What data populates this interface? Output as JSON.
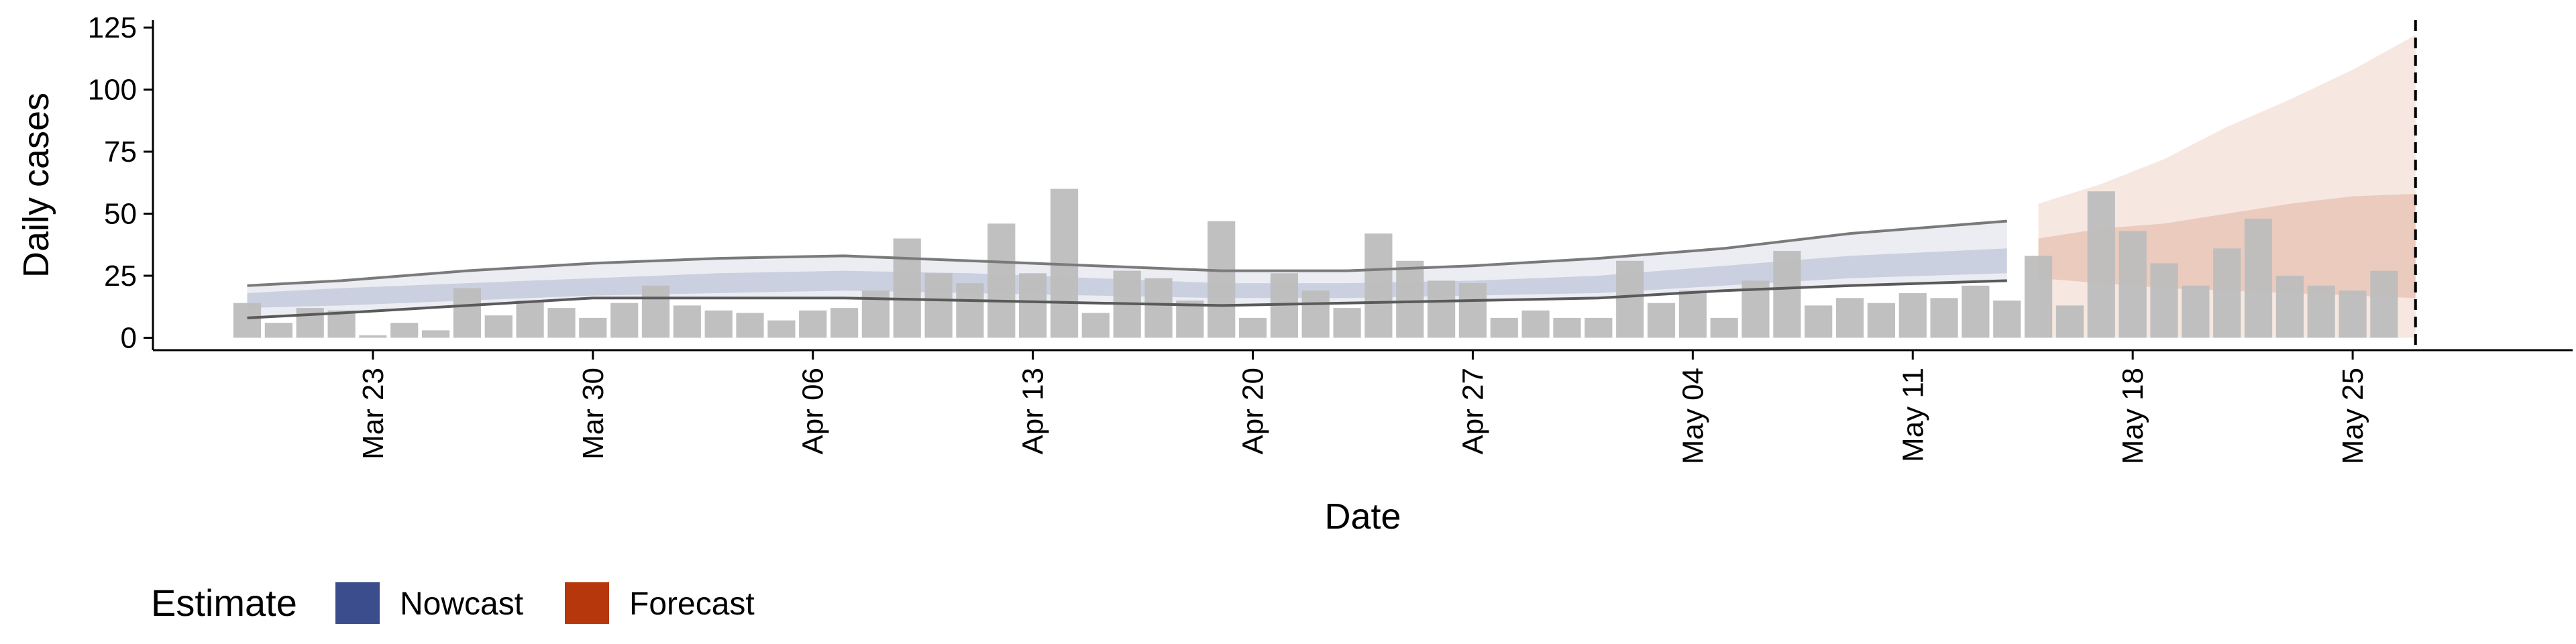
{
  "chart_data": {
    "type": "bar",
    "xlabel": "Date",
    "ylabel": "Daily cases",
    "ylim": [
      -5,
      128
    ],
    "yticks": [
      0,
      25,
      50,
      75,
      100,
      125
    ],
    "xlim": [
      "2020-03-16",
      "2020-06-01"
    ],
    "xticks": [
      {
        "date": "2020-03-23",
        "label": "Mar 23"
      },
      {
        "date": "2020-03-30",
        "label": "Mar 30"
      },
      {
        "date": "2020-04-06",
        "label": "Apr 06"
      },
      {
        "date": "2020-04-13",
        "label": "Apr 13"
      },
      {
        "date": "2020-04-20",
        "label": "Apr 20"
      },
      {
        "date": "2020-04-27",
        "label": "Apr 27"
      },
      {
        "date": "2020-05-04",
        "label": "May 04"
      },
      {
        "date": "2020-05-11",
        "label": "May 11"
      },
      {
        "date": "2020-05-18",
        "label": "May 18"
      },
      {
        "date": "2020-05-25",
        "label": "May 25"
      }
    ],
    "grid": false,
    "reference_line": {
      "date": "2020-05-27",
      "style": "dashed"
    },
    "bars": {
      "start": "2020-03-19",
      "color": "#bdbdbd",
      "values": [
        14,
        6,
        12,
        11,
        1,
        6,
        3,
        20,
        9,
        15,
        12,
        8,
        14,
        21,
        13,
        11,
        10,
        7,
        11,
        12,
        19,
        40,
        26,
        22,
        46,
        26,
        60,
        10,
        27,
        24,
        15,
        47,
        8,
        26,
        19,
        12,
        42,
        31,
        23,
        22,
        8,
        11,
        8,
        8,
        31,
        14,
        19,
        8,
        23,
        35,
        13,
        16,
        14,
        18,
        16,
        21,
        15,
        33,
        13,
        59,
        43,
        30,
        21,
        36,
        48,
        25,
        21,
        19,
        27
      ]
    },
    "nowcast": {
      "name": "Nowcast",
      "color": "#3b4d8c",
      "x": [
        "2020-03-19",
        "2020-03-22",
        "2020-03-26",
        "2020-03-30",
        "2020-04-03",
        "2020-04-07",
        "2020-04-11",
        "2020-04-15",
        "2020-04-19",
        "2020-04-23",
        "2020-04-27",
        "2020-05-01",
        "2020-05-05",
        "2020-05-09",
        "2020-05-14"
      ],
      "outer_upper": [
        21,
        23,
        27,
        30,
        32,
        33,
        31,
        29,
        27,
        27,
        29,
        32,
        36,
        42,
        47
      ],
      "outer_lower": [
        8,
        10,
        13,
        16,
        16,
        16,
        15,
        14,
        13,
        14,
        15,
        16,
        19,
        21,
        23
      ],
      "inner_upper": [
        18,
        20,
        22,
        24,
        26,
        27,
        26,
        24,
        22,
        22,
        23,
        25,
        29,
        33,
        36
      ],
      "inner_lower": [
        12,
        13,
        15,
        17,
        18,
        19,
        18,
        17,
        16,
        16,
        17,
        18,
        21,
        24,
        26
      ],
      "lines": {
        "upper": [
          21,
          23,
          27,
          30,
          32,
          33,
          31,
          29,
          27,
          27,
          29,
          32,
          36,
          42,
          47
        ],
        "lower": [
          8,
          10,
          13,
          16,
          16,
          16,
          15,
          14,
          13,
          14,
          15,
          16,
          19,
          21,
          23
        ]
      }
    },
    "forecast": {
      "name": "Forecast",
      "color": "#b5370b",
      "x": [
        "2020-05-15",
        "2020-05-17",
        "2020-05-19",
        "2020-05-21",
        "2020-05-23",
        "2020-05-25",
        "2020-05-27"
      ],
      "outer_upper": [
        54,
        62,
        72,
        85,
        96,
        108,
        122
      ],
      "outer_lower": [
        0,
        0,
        0,
        0,
        0,
        0,
        0
      ],
      "inner_upper": [
        40,
        44,
        46,
        50,
        54,
        57,
        58
      ],
      "inner_lower": [
        24,
        22,
        20,
        19,
        18,
        17,
        16
      ]
    },
    "legend": {
      "title": "Estimate",
      "placement": "bottom-left",
      "entries": [
        {
          "label": "Nowcast",
          "color": "#3b4d8c"
        },
        {
          "label": "Forecast",
          "color": "#b5370b"
        }
      ]
    }
  }
}
